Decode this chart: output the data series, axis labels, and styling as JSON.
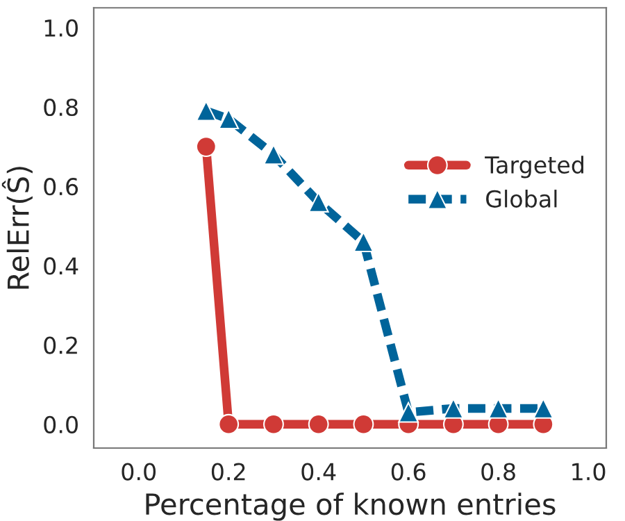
{
  "chart_data": {
    "type": "line",
    "xlabel": "Percentage of known entries",
    "ylabel": "RelErr(Ŝ)",
    "xlim": [
      -0.1,
      1.04
    ],
    "ylim": [
      -0.06,
      1.05
    ],
    "xticks": [
      {
        "value": 0,
        "label": "0.0"
      },
      0.2,
      0.4,
      0.6,
      0.8,
      {
        "value": 1,
        "label": "1.0"
      }
    ],
    "yticks": [
      {
        "value": 0,
        "label": "0.0"
      },
      0.2,
      0.4,
      0.6,
      0.8,
      {
        "value": 1,
        "label": "1.0"
      }
    ],
    "grid": false,
    "legend": "right",
    "series": [
      {
        "name": "Targeted",
        "color": "#d03a36",
        "marker": "circle",
        "line_style": "solid",
        "x": [
          0.15,
          0.2,
          0.3,
          0.4,
          0.5,
          0.6,
          0.7,
          0.8,
          0.9
        ],
        "values": [
          0.7,
          0,
          0,
          0,
          0,
          0,
          0,
          0,
          0
        ]
      },
      {
        "name": "Global",
        "color": "#00649a",
        "marker": "triangle",
        "line_style": "dashed",
        "x": [
          0.15,
          0.2,
          0.3,
          0.4,
          0.5,
          0.6,
          0.7,
          0.8,
          0.9
        ],
        "values": [
          0.79,
          0.77,
          0.68,
          0.56,
          0.46,
          0.03,
          0.04,
          0.04,
          0.04
        ]
      }
    ]
  }
}
